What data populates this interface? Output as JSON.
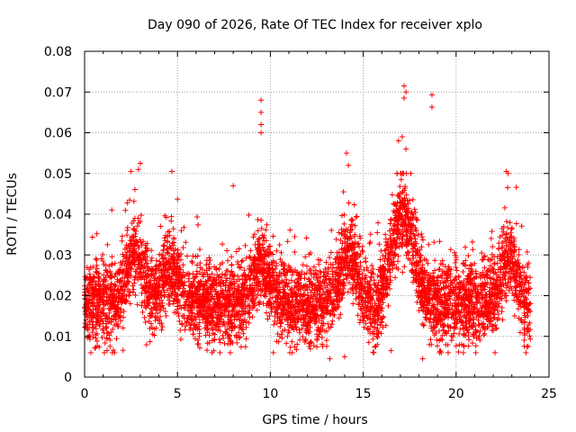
{
  "chart_data": {
    "type": "scatter",
    "title": "Day 090 of 2026, Rate Of TEC Index for receiver xplo",
    "xlabel": "GPS time / hours",
    "ylabel": "ROTI / TECUs",
    "xlim": [
      0,
      25
    ],
    "ylim": [
      0,
      0.08
    ],
    "xticks": [
      0,
      5,
      10,
      15,
      20,
      25
    ],
    "yticks": [
      0,
      0.01,
      0.02,
      0.03,
      0.04,
      0.05,
      0.06,
      0.07,
      0.08
    ],
    "xtick_labels": [
      "0",
      "5",
      "10",
      "15",
      "20",
      "25"
    ],
    "ytick_labels": [
      "0",
      "0.01",
      "0.02",
      "0.03",
      "0.04",
      "0.05",
      "0.06",
      "0.07",
      "0.08"
    ],
    "grid": true,
    "marker": "+",
    "color": "#ff0000",
    "series": [
      {
        "name": "ROTI",
        "x_range": [
          0,
          24
        ],
        "baseline_band": [
          0.008,
          0.03
        ],
        "typical_value": 0.018,
        "notable_points": [
          {
            "x": 9.5,
            "y": 0.068
          },
          {
            "x": 9.5,
            "y": 0.065
          },
          {
            "x": 9.5,
            "y": 0.062
          },
          {
            "x": 9.5,
            "y": 0.06
          },
          {
            "x": 17.2,
            "y": 0.0715
          },
          {
            "x": 17.3,
            "y": 0.07
          },
          {
            "x": 17.2,
            "y": 0.0685
          },
          {
            "x": 18.7,
            "y": 0.0693
          },
          {
            "x": 18.7,
            "y": 0.0663
          },
          {
            "x": 16.9,
            "y": 0.058
          },
          {
            "x": 17.1,
            "y": 0.059
          },
          {
            "x": 17.3,
            "y": 0.056
          },
          {
            "x": 14.1,
            "y": 0.055
          },
          {
            "x": 14.2,
            "y": 0.052
          },
          {
            "x": 3.0,
            "y": 0.0525
          },
          {
            "x": 2.9,
            "y": 0.051
          },
          {
            "x": 2.5,
            "y": 0.0505
          },
          {
            "x": 4.7,
            "y": 0.0505
          },
          {
            "x": 22.7,
            "y": 0.0505
          },
          {
            "x": 22.8,
            "y": 0.05
          },
          {
            "x": 8.0,
            "y": 0.047
          },
          {
            "x": 14.0,
            "y": 0.005
          },
          {
            "x": 13.2,
            "y": 0.0045
          },
          {
            "x": 18.2,
            "y": 0.0045
          },
          {
            "x": 16.5,
            "y": 0.0065
          }
        ]
      }
    ]
  }
}
